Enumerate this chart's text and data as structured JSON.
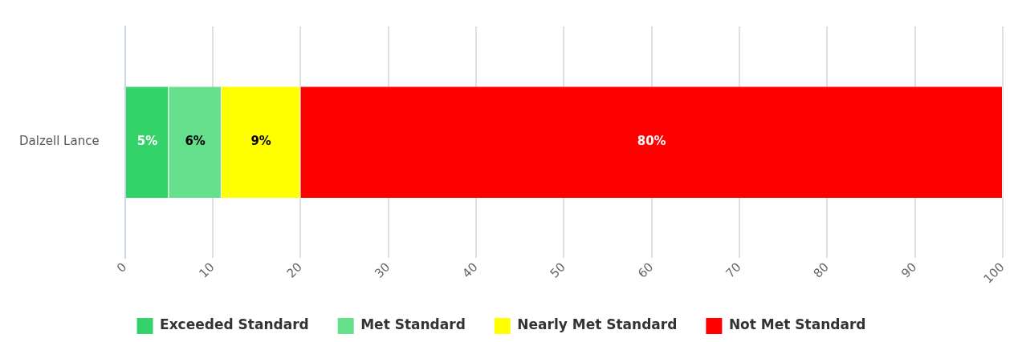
{
  "chart_data": {
    "type": "bar",
    "orientation": "horizontal",
    "stacked": true,
    "categories": [
      "Dalzell Lance"
    ],
    "series": [
      {
        "name": "Exceeded Standard",
        "color": "#33d36a",
        "values": [
          5
        ],
        "value_labels": [
          "5%"
        ]
      },
      {
        "name": "Met Standard",
        "color": "#66e08c",
        "values": [
          6
        ],
        "value_labels": [
          "6%"
        ]
      },
      {
        "name": "Nearly Met Standard",
        "color": "#ffff00",
        "values": [
          9
        ],
        "value_labels": [
          "9%"
        ]
      },
      {
        "name": "Not Met Standard",
        "color": "#ff0000",
        "values": [
          80
        ],
        "value_labels": [
          "80%"
        ]
      }
    ],
    "xlim": [
      0,
      100
    ],
    "xticks": [
      0,
      10,
      20,
      30,
      40,
      50,
      60,
      70,
      80,
      90,
      100
    ],
    "grid": "x",
    "legend": "bottom"
  }
}
